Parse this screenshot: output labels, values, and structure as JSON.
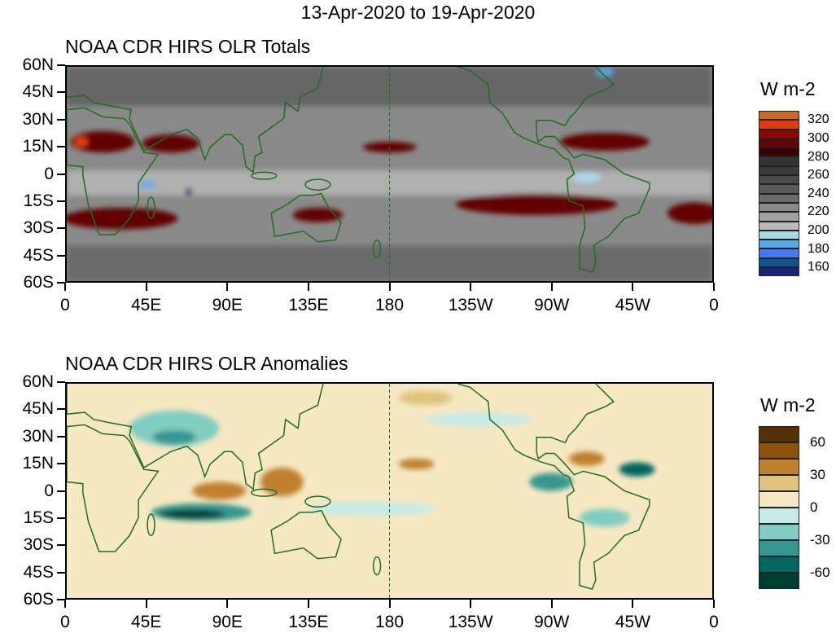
{
  "title": "13-Apr-2020 to 19-Apr-2020",
  "chart_data": [
    {
      "type": "heatmap",
      "title": "NOAA CDR HIRS OLR Totals",
      "units": "W m-2",
      "x_ticks": [
        "0",
        "45E",
        "90E",
        "135E",
        "180",
        "135W",
        "90W",
        "45W",
        "0"
      ],
      "y_ticks": [
        "60N",
        "45N",
        "30N",
        "15N",
        "0",
        "15S",
        "30S",
        "45S",
        "60S"
      ],
      "lon_range": [
        0,
        360
      ],
      "lat_range": [
        -60,
        60
      ],
      "colorbar_labels": [
        "320",
        "300",
        "280",
        "260",
        "240",
        "220",
        "200",
        "180",
        "160"
      ],
      "colorbar_colors": [
        "#cc6a22",
        "#e03a12",
        "#8c0a06",
        "#620604",
        "#3a0202",
        "#333333",
        "#3b3b3b",
        "#4a4a4a",
        "#5a5a5a",
        "#6c6c6c",
        "#888888",
        "#a0a0a0",
        "#bababa",
        "#a9d8e8",
        "#58aaea",
        "#4878f8",
        "#125592",
        "#1a237a"
      ]
    },
    {
      "type": "heatmap",
      "title": "NOAA CDR HIRS OLR Anomalies",
      "units": "W m-2",
      "x_ticks": [
        "0",
        "45E",
        "90E",
        "135E",
        "180",
        "135W",
        "90W",
        "45W",
        "0"
      ],
      "y_ticks": [
        "60N",
        "45N",
        "30N",
        "15N",
        "0",
        "15S",
        "30S",
        "45S",
        "60S"
      ],
      "lon_range": [
        0,
        360
      ],
      "lat_range": [
        -60,
        60
      ],
      "colorbar_labels": [
        "60",
        "30",
        "0",
        "-30",
        "-60"
      ],
      "colorbar_colors": [
        "#543005",
        "#8c510a",
        "#bf812d",
        "#dfc27d",
        "#f6e8c3",
        "#c7eae5",
        "#80cdc1",
        "#35978f",
        "#01665e",
        "#003c30"
      ]
    }
  ]
}
